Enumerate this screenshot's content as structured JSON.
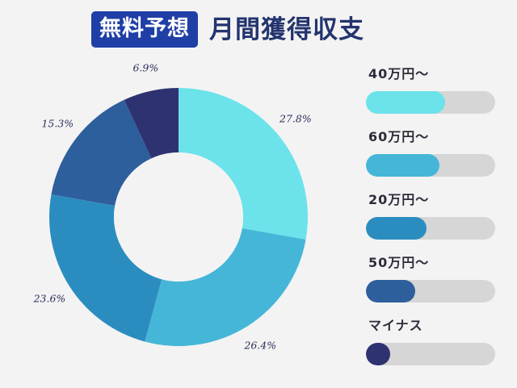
{
  "header": {
    "badge": "無料予想",
    "title": "月間獲得収支"
  },
  "chart_data": {
    "type": "pie",
    "variant": "donut",
    "categories": [
      "40万円〜",
      "60万円〜",
      "20万円〜",
      "50万円〜",
      "マイナス"
    ],
    "values": [
      27.8,
      26.4,
      23.6,
      15.3,
      6.9
    ],
    "labels": [
      "27.8%",
      "26.4%",
      "23.6%",
      "15.3%",
      "6.9%"
    ],
    "colors": [
      "#6ce3ea",
      "#45b6d8",
      "#2b8dbf",
      "#2d5f9c",
      "#2f3271"
    ]
  },
  "legend": {
    "items": [
      {
        "label": "40万円〜",
        "fill": 0.61,
        "color": "#6ce3ea"
      },
      {
        "label": "60万円〜",
        "fill": 0.57,
        "color": "#45b6d8"
      },
      {
        "label": "20万円〜",
        "fill": 0.47,
        "color": "#2b8dbf"
      },
      {
        "label": "50万円〜",
        "fill": 0.38,
        "color": "#2d5f9c"
      },
      {
        "label": "マイナス",
        "fill": 0.19,
        "color": "#2f3271"
      }
    ]
  }
}
